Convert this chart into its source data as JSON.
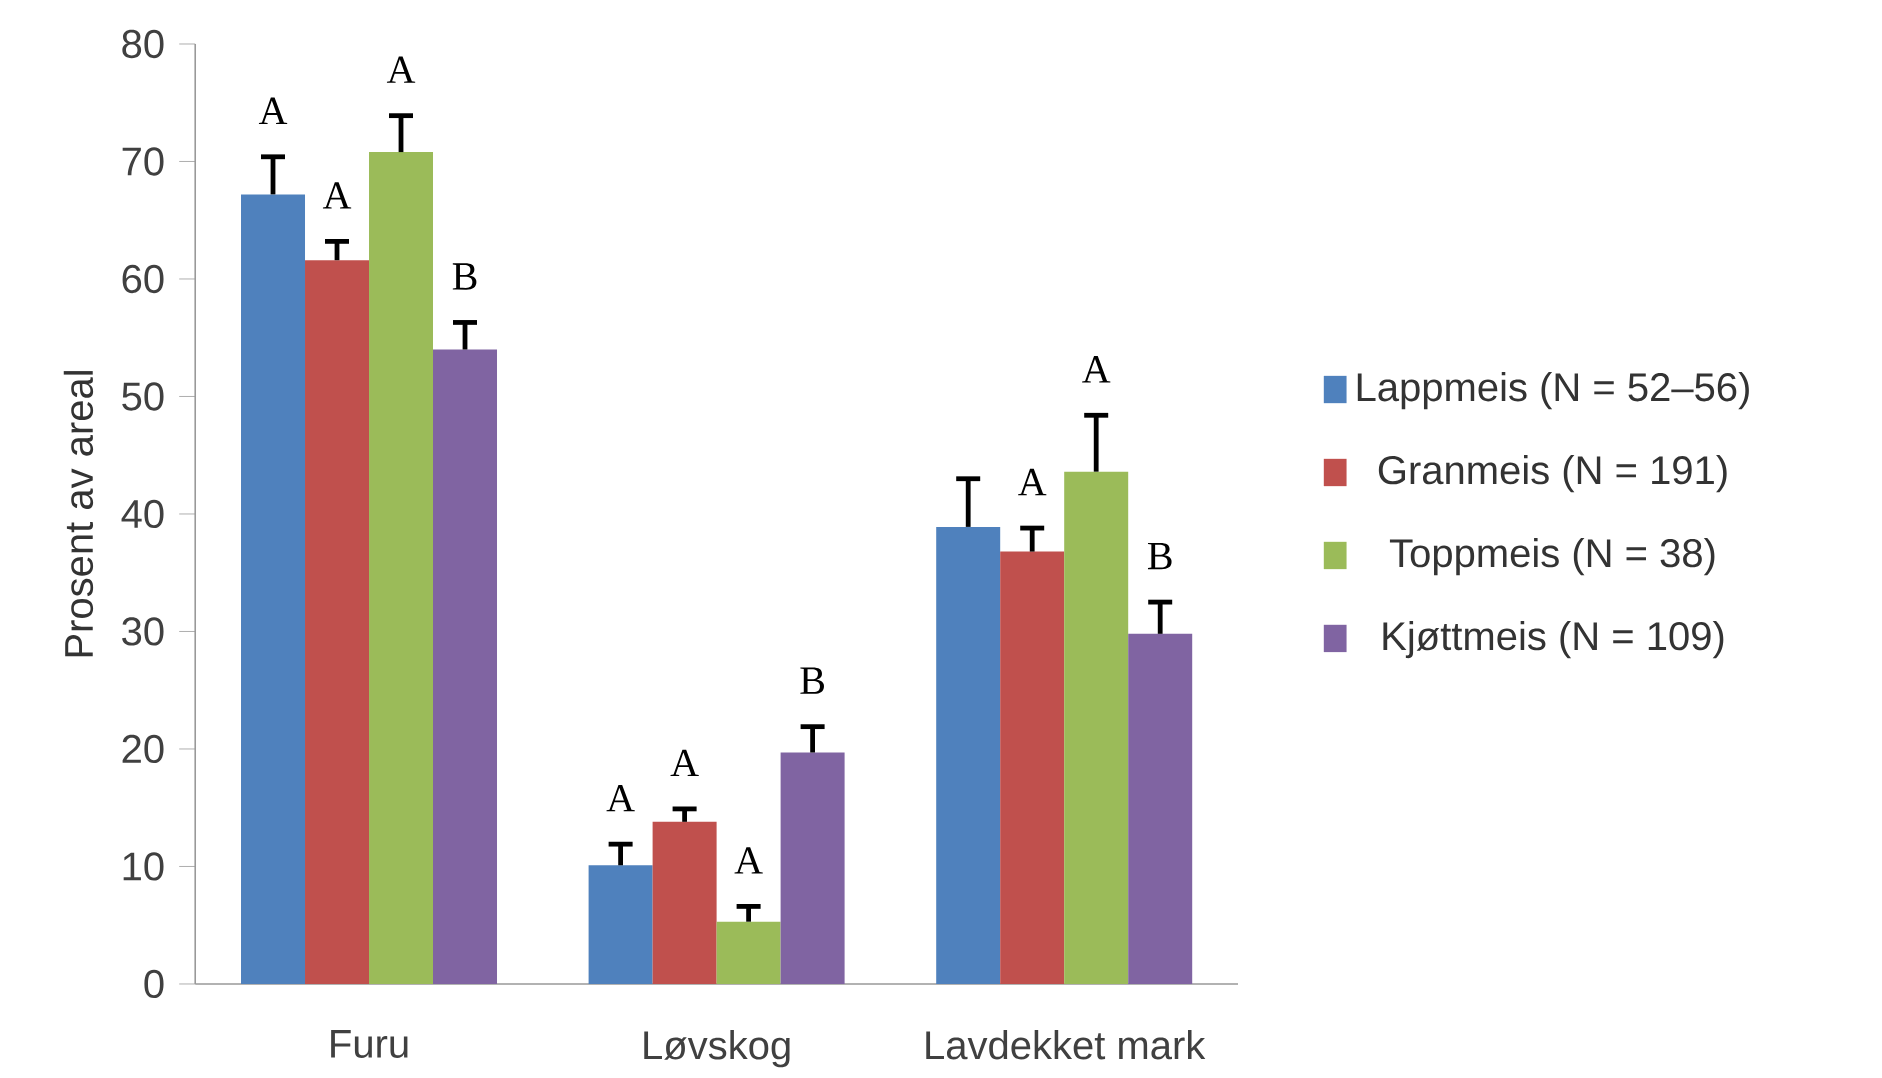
{
  "chart_data": {
    "type": "bar",
    "ylabel": "Prosent av areal",
    "categories": [
      "Furu",
      "Løvskog",
      "Lavdekket mark"
    ],
    "series": [
      {
        "name": "Lappmeis (N = 52–56)",
        "color": "#4f81bd",
        "values": [
          67.2,
          10.1,
          38.9
        ],
        "errors": [
          [
            67.2,
            70.4
          ],
          [
            10.1,
            11.9
          ],
          [
            38.9,
            43.0
          ]
        ],
        "value_labels": [
          "A",
          "A",
          null
        ]
      },
      {
        "name": "Granmeis (N = 191)",
        "color": "#c0504d",
        "values": [
          61.6,
          13.8,
          36.8
        ],
        "errors": [
          [
            61.6,
            63.2
          ],
          [
            13.8,
            14.9
          ],
          [
            36.8,
            38.8
          ]
        ],
        "value_labels": [
          "A",
          "A",
          "A"
        ]
      },
      {
        "name": "Toppmeis (N = 38)",
        "color": "#9bbb59",
        "values": [
          70.8,
          5.3,
          43.6
        ],
        "errors": [
          [
            70.8,
            73.9
          ],
          [
            5.3,
            6.6
          ],
          [
            43.6,
            48.4
          ]
        ],
        "value_labels": [
          "A",
          "A",
          "A"
        ]
      },
      {
        "name": "Kjøttmeis (N = 109)",
        "color": "#8064a2",
        "values": [
          54.0,
          19.7,
          29.8
        ],
        "errors": [
          [
            54.0,
            56.3
          ],
          [
            19.7,
            21.9
          ],
          [
            29.8,
            32.5
          ]
        ],
        "value_labels": [
          "B",
          "B",
          "B"
        ]
      }
    ],
    "ylim": [
      0,
      80
    ],
    "yticks": [
      0,
      10,
      20,
      30,
      40,
      50,
      60,
      70,
      80
    ],
    "grid": false,
    "legend": "right"
  }
}
